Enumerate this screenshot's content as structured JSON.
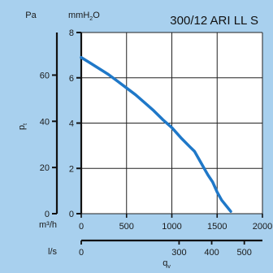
{
  "chart_data": {
    "type": "line",
    "title": "300/12 ARI LL S",
    "colors": {
      "background": "#a8d0ee",
      "plot_area": "#ffffff",
      "grid": "#222222",
      "curve": "#1f78c8",
      "axis": "#111111",
      "text": "#1a1a1a"
    },
    "y_axis_mmh2o": {
      "unit_main": "mmH",
      "unit_sub": "2",
      "unit_tail": "O",
      "range": [
        0,
        8
      ],
      "ticks": [
        "0",
        "2",
        "4",
        "6",
        "8"
      ]
    },
    "y_axis_pa": {
      "unit": "Pa",
      "range": [
        0,
        78.45
      ],
      "ticks": [
        "0",
        "20",
        "40",
        "60"
      ],
      "tick_values": [
        0,
        20,
        40,
        60
      ]
    },
    "y_label": {
      "main": "p",
      "sub": "t"
    },
    "x_axis_m3h": {
      "unit": "m³/h",
      "range": [
        0,
        2000
      ],
      "ticks": [
        "0",
        "500",
        "1000",
        "1500",
        "2000"
      ],
      "tick_values": [
        0,
        500,
        1000,
        1500,
        2000
      ]
    },
    "x_axis_ls": {
      "unit": "l/s",
      "range": [
        0,
        555.6
      ],
      "ticks": [
        "0",
        "300",
        "400",
        "500"
      ],
      "tick_values": [
        0,
        300,
        400,
        500
      ]
    },
    "x_label": {
      "main": "q",
      "sub": "v"
    },
    "grid": true,
    "series": [
      {
        "x": [
          0,
          100,
          200,
          300,
          400,
          500,
          600,
          700,
          800,
          900,
          1000,
          1100,
          1200,
          1250,
          1300,
          1350,
          1400,
          1450,
          1500,
          1550,
          1650
        ],
        "y": [
          6.9,
          6.65,
          6.4,
          6.15,
          5.85,
          5.55,
          5.25,
          4.9,
          4.55,
          4.15,
          3.8,
          3.35,
          2.95,
          2.75,
          2.4,
          2.05,
          1.7,
          1.4,
          0.95,
          0.6,
          0.1
        ]
      }
    ]
  }
}
